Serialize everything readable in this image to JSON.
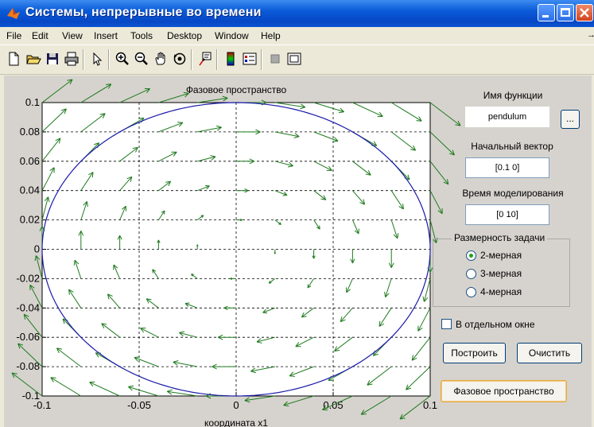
{
  "window": {
    "title": "Системы, непрерывные во времени"
  },
  "menu": [
    "File",
    "Edit",
    "View",
    "Insert",
    "Tools",
    "Desktop",
    "Window",
    "Help"
  ],
  "toolbar_icons": [
    "new-file-icon",
    "open-folder-icon",
    "save-icon",
    "print-icon",
    "pointer-icon",
    "zoom-in-icon",
    "zoom-out-icon",
    "pan-hand-icon",
    "rotate-3d-icon",
    "data-cursor-icon",
    "colorbar-icon",
    "legend-icon",
    "hide-plot-tools-icon",
    "show-plot-tools-icon"
  ],
  "colors": {
    "titlebar": "#0a54d0",
    "figure_bg": "#d6d3ce",
    "trajectory": "#1a1aa8",
    "vectors": "#1f7a1f"
  },
  "controls": {
    "function_label": "Имя функции",
    "function_value": "pendulum",
    "browse_label": "...",
    "initial_vector_label": "Начальный вектор",
    "initial_vector_value": "[0.1 0]",
    "sim_time_label": "Время моделирования",
    "sim_time_value": "[0 10]",
    "dimension_title": "Размерность задачи",
    "dimension_options": [
      "2-мерная",
      "3-мерная",
      "4-мерная"
    ],
    "dimension_selected": 0,
    "separate_window_label": "В отдельном окне",
    "separate_window_checked": false,
    "build_button": "Построить",
    "clear_button": "Очистить",
    "phase_button": "Фазовое пространство"
  },
  "chart_data": {
    "type": "line",
    "title": "Фазовое пространство",
    "xlabel": "координата x1",
    "ylabel": "",
    "xlim": [
      -0.1,
      0.1
    ],
    "ylim": [
      -0.1,
      0.1
    ],
    "grid": true,
    "xticks": [
      -0.1,
      -0.05,
      0,
      0.05,
      0.1
    ],
    "xtick_labels": [
      "-0.1",
      "-0.05",
      "0",
      "0.05",
      "0.1"
    ],
    "yticks": [
      0.1,
      0.08,
      0.06,
      0.04,
      0.02,
      0,
      -0.02,
      -0.04,
      -0.06,
      -0.08,
      -0.1
    ],
    "ytick_labels": [
      "0.1",
      "0.08",
      "0.06",
      "0.04",
      "0.02",
      "0",
      "-0.02",
      "-0.04",
      "-0.06",
      "-0.08",
      "-0.1"
    ],
    "trajectory": {
      "shape": "closed orbit",
      "x_radius": 0.1,
      "y_radius": 0.1
    },
    "vector_field": {
      "x_samples": [
        -0.1,
        -0.09,
        -0.08,
        -0.07,
        -0.06,
        -0.05,
        -0.04,
        -0.03,
        -0.02,
        -0.01,
        0,
        0.01,
        0.02,
        0.03,
        0.04,
        0.05,
        0.06,
        0.07,
        0.08,
        0.09,
        0.1
      ],
      "y_samples": [
        0.1,
        0.09,
        0.08,
        0.07,
        0.06,
        0.05,
        0.04,
        0.03,
        0.02,
        0.01,
        0,
        -0.01,
        -0.02,
        -0.03,
        -0.04,
        -0.05,
        -0.06,
        -0.07,
        -0.08,
        -0.09,
        -0.1
      ],
      "field": "dx1 = x2, dx2 = -x1"
    }
  }
}
